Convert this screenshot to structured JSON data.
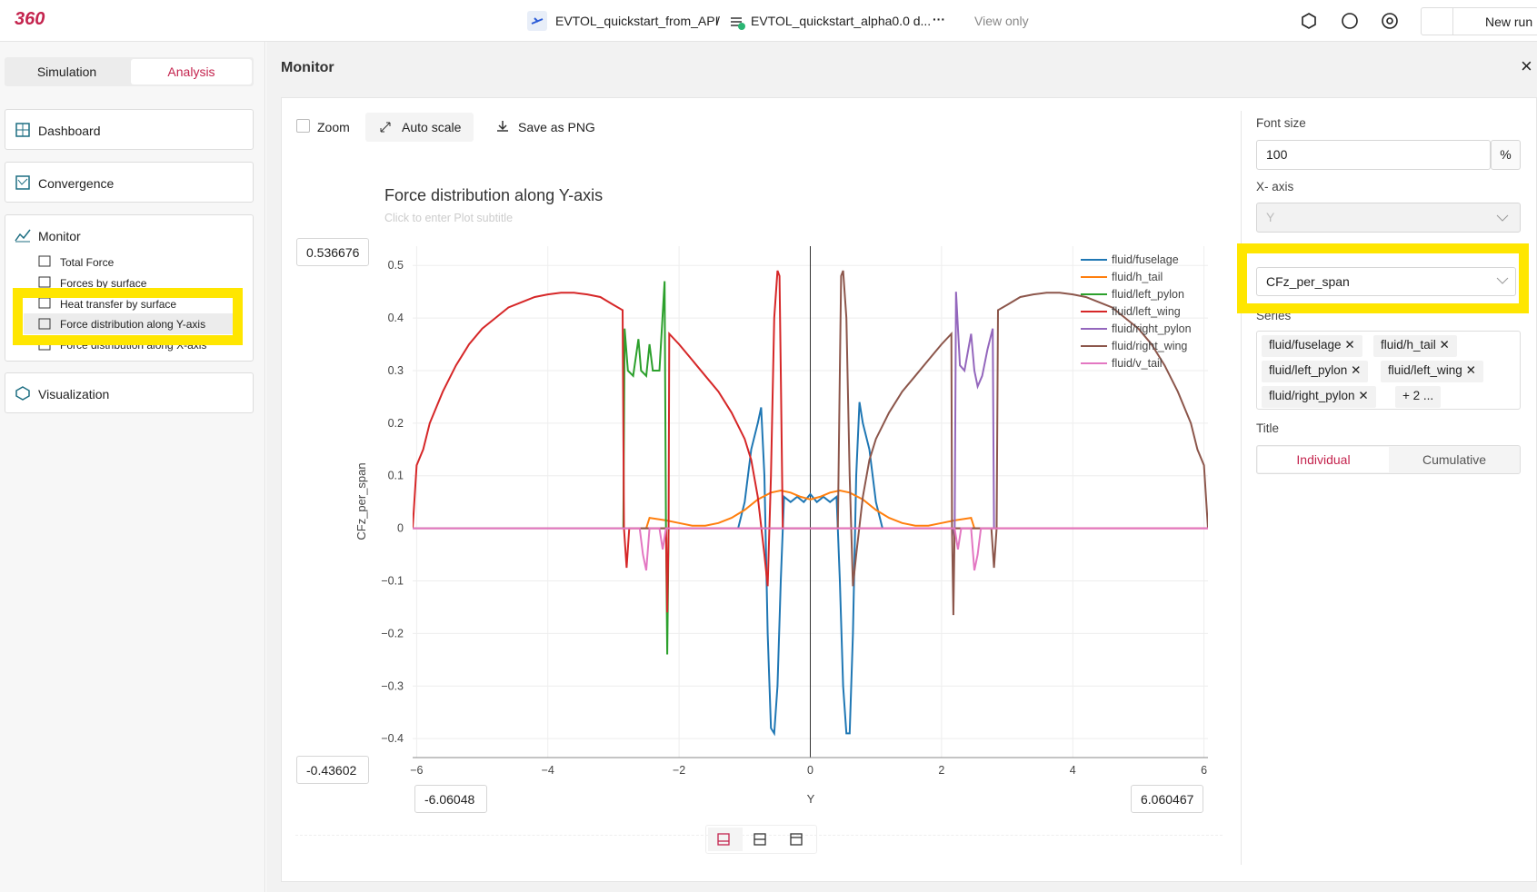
{
  "header": {
    "logo": "360",
    "project": "EVTOL_quickstart_from_API",
    "separator": "/",
    "case": "EVTOL_quickstart_alpha0.0 d...",
    "more": "···",
    "mode": "View only",
    "new_run": "New run"
  },
  "sidebar": {
    "tabs": [
      "Simulation",
      "Analysis"
    ],
    "items": [
      "Dashboard",
      "Convergence",
      "Monitor",
      "Visualization"
    ],
    "monitor_items": [
      "Total Force",
      "Forces by surface",
      "Heat transfer by surface",
      "Force distribution along Y-axis",
      "Force distribution along X-axis"
    ]
  },
  "panel": {
    "title": "Monitor",
    "close": "×"
  },
  "toolbar": {
    "zoom": "Zoom",
    "auto_scale": "Auto scale",
    "save": "Save as PNG"
  },
  "settings": {
    "font_size_label": "Font size",
    "font_size": "100",
    "unit": "%",
    "x_axis_label": "X- axis",
    "x_axis": "Y",
    "y_select": "CFz_per_span",
    "series_label": "Series",
    "chips": [
      "fluid/fuselage",
      "fluid/h_tail",
      "fluid/left_pylon",
      "fluid/left_wing",
      "fluid/right_pylon"
    ],
    "more_chip": "+ 2 ...",
    "title_label": "Title",
    "modes": [
      "Individual",
      "Cumulative"
    ]
  },
  "chart_data": {
    "type": "line",
    "title": "Force distribution along Y-axis",
    "subtitle": "Click to enter Plot subtitle",
    "x_label": "Y",
    "y_label": "CFz_per_span",
    "xlim": [
      -6.06048,
      6.060467
    ],
    "ylim": [
      -0.43602,
      0.536676
    ],
    "xticks": [
      {
        "value": -6,
        "label": "−6"
      },
      {
        "value": -4,
        "label": "−4"
      },
      {
        "value": -2,
        "label": "−2"
      },
      0,
      2,
      4,
      6
    ],
    "yticks": [
      {
        "value": -0.4,
        "label": "−0.4"
      },
      {
        "value": -0.3,
        "label": "−0.3"
      },
      {
        "value": -0.2,
        "label": "−0.2"
      },
      {
        "value": -0.1,
        "label": "−0.1"
      },
      0,
      0.1,
      0.2,
      0.3,
      0.4,
      0.5
    ],
    "grid": true,
    "legend": "top-right",
    "series": [
      {
        "name": "fluid/fuselage",
        "color": "#1f77b4",
        "x": [
          -1.1,
          -1.0,
          -0.9,
          -0.8,
          -0.75,
          -0.7,
          -0.65,
          -0.6,
          -0.55,
          -0.5,
          -0.45,
          -0.4,
          -0.3,
          -0.2,
          -0.1,
          0,
          0.1,
          0.2,
          0.3,
          0.4,
          0.45,
          0.5,
          0.55,
          0.6,
          0.65,
          0.7,
          0.75,
          0.8,
          0.9,
          1.0,
          1.1
        ],
        "values": [
          0,
          0.05,
          0.15,
          0.2,
          0.23,
          0.1,
          -0.2,
          -0.38,
          -0.39,
          -0.3,
          -0.1,
          0.06,
          0.05,
          0.06,
          0.05,
          0.065,
          0.05,
          0.06,
          0.05,
          0.06,
          -0.1,
          -0.3,
          -0.39,
          -0.39,
          -0.2,
          0.1,
          0.24,
          0.2,
          0.15,
          0.05,
          0
        ]
      },
      {
        "name": "fluid/h_tail",
        "color": "#ff7f0e",
        "x": [
          -2.5,
          -2.45,
          -2.2,
          -2.0,
          -1.8,
          -1.6,
          -1.4,
          -1.2,
          -1.0,
          -0.8,
          -0.6,
          -0.45,
          -0.3,
          -0.15,
          0,
          0.15,
          0.3,
          0.45,
          0.6,
          0.8,
          1.0,
          1.2,
          1.4,
          1.6,
          1.8,
          2.0,
          2.2,
          2.45,
          2.5
        ],
        "values": [
          0,
          0.02,
          0.015,
          0.01,
          0.005,
          0.005,
          0.01,
          0.02,
          0.035,
          0.055,
          0.068,
          0.072,
          0.068,
          0.06,
          0.055,
          0.06,
          0.068,
          0.072,
          0.068,
          0.055,
          0.035,
          0.02,
          0.01,
          0.005,
          0.005,
          0.01,
          0.015,
          0.02,
          0
        ]
      },
      {
        "name": "fluid/left_pylon",
        "color": "#2ca02c",
        "x": [
          -2.85,
          -2.83,
          -2.78,
          -2.7,
          -2.62,
          -2.58,
          -2.5,
          -2.45,
          -2.4,
          -2.3,
          -2.22,
          -2.2,
          -2.18,
          -2.16
        ],
        "values": [
          0,
          0.38,
          0.3,
          0.29,
          0.36,
          0.3,
          0.29,
          0.35,
          0.3,
          0.3,
          0.47,
          0,
          -0.24,
          0
        ]
      },
      {
        "name": "fluid/left_wing",
        "color": "#d62728",
        "x": [
          -6.06,
          -6.0,
          -5.9,
          -5.8,
          -5.6,
          -5.4,
          -5.2,
          -5.0,
          -4.8,
          -4.6,
          -4.4,
          -4.2,
          -4.0,
          -3.8,
          -3.6,
          -3.4,
          -3.2,
          -3.0,
          -2.86,
          -2.84,
          -2.8,
          -2.76,
          -2.6,
          -2.2,
          -2.18,
          -2.16,
          -2.15,
          -2.0,
          -1.8,
          -1.6,
          -1.4,
          -1.2,
          -1.0,
          -0.9,
          -0.8,
          -0.7,
          -0.65,
          -0.6,
          -0.55,
          -0.5,
          -0.47,
          -0.45,
          -0.42,
          6.06
        ],
        "values": [
          0,
          0.12,
          0.15,
          0.2,
          0.26,
          0.31,
          0.35,
          0.38,
          0.4,
          0.42,
          0.43,
          0.44,
          0.445,
          0.448,
          0.448,
          0.445,
          0.44,
          0.425,
          0.415,
          0,
          -0.075,
          0,
          0,
          0,
          -0.16,
          0,
          0.37,
          0.35,
          0.32,
          0.29,
          0.26,
          0.22,
          0.17,
          0.13,
          0.06,
          -0.05,
          -0.11,
          0.1,
          0.4,
          0.49,
          0.48,
          0.3,
          0,
          0
        ]
      },
      {
        "name": "fluid/right_pylon",
        "color": "#9467bd",
        "x": [
          2.18,
          2.2,
          2.22,
          2.28,
          2.35,
          2.45,
          2.5,
          2.55,
          2.62,
          2.7,
          2.78,
          2.8
        ],
        "values": [
          0,
          -0.02,
          0.45,
          0.31,
          0.3,
          0.37,
          0.3,
          0.27,
          0.29,
          0.34,
          0.38,
          0
        ]
      },
      {
        "name": "fluid/right_wing",
        "color": "#8c564b",
        "x": [
          -6.06,
          0.42,
          0.45,
          0.47,
          0.5,
          0.55,
          0.6,
          0.65,
          0.7,
          0.8,
          0.9,
          1.0,
          1.2,
          1.4,
          1.6,
          1.8,
          2.0,
          2.15,
          2.16,
          2.18,
          2.2,
          2.6,
          2.76,
          2.8,
          2.84,
          2.86,
          3.0,
          3.2,
          3.4,
          3.6,
          3.8,
          4.0,
          4.2,
          4.4,
          4.6,
          4.8,
          5.0,
          5.2,
          5.4,
          5.6,
          5.8,
          5.9,
          6.0,
          6.06
        ],
        "values": [
          0,
          0,
          0.3,
          0.48,
          0.49,
          0.4,
          0.1,
          -0.11,
          -0.05,
          0.06,
          0.13,
          0.17,
          0.22,
          0.26,
          0.29,
          0.32,
          0.35,
          0.37,
          0,
          -0.165,
          0,
          0,
          0,
          -0.075,
          0,
          0.415,
          0.425,
          0.44,
          0.445,
          0.448,
          0.448,
          0.445,
          0.44,
          0.43,
          0.42,
          0.4,
          0.38,
          0.35,
          0.31,
          0.26,
          0.2,
          0.15,
          0.12,
          0
        ]
      },
      {
        "name": "fluid/v_tail",
        "color": "#e377c2",
        "x": [
          -6.06,
          -2.6,
          -2.55,
          -2.5,
          -2.45,
          -2.3,
          -2.25,
          -2.2,
          2.2,
          2.25,
          2.3,
          2.45,
          2.5,
          2.55,
          2.6,
          6.06
        ],
        "values": [
          0,
          0,
          -0.05,
          -0.08,
          0,
          0,
          -0.04,
          0,
          0,
          -0.04,
          0,
          0,
          -0.08,
          -0.05,
          0,
          0
        ]
      }
    ]
  }
}
